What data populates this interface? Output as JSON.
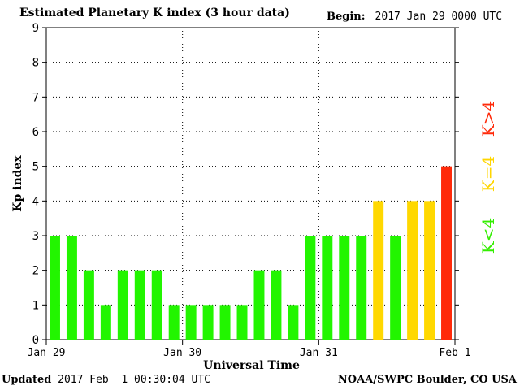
{
  "header": {
    "title": "Estimated Planetary K index (3 hour data)",
    "begin_label": "Begin:",
    "begin_value": "2017 Jan 29 0000 UTC"
  },
  "footer": {
    "updated_label": "Updated",
    "updated_value": "2017 Feb  1 00:30:04 UTC",
    "credit": "NOAA/SWPC Boulder, CO USA"
  },
  "legend": [
    {
      "label": "K<4",
      "color": "#33ee00"
    },
    {
      "label": "K=4",
      "color": "#ffd600"
    },
    {
      "label": "K>4",
      "color": "#ff2a0a"
    }
  ],
  "colors": {
    "low": "#22f500",
    "mid": "#ffd800",
    "high": "#ff2a0a"
  },
  "chart_data": {
    "type": "bar",
    "title": "Estimated Planetary K index (3 hour data)",
    "xlabel": "Universal Time",
    "ylabel": "Kp index",
    "ylim": [
      0,
      9
    ],
    "yticks": [
      0,
      1,
      2,
      3,
      4,
      5,
      6,
      7,
      8,
      9
    ],
    "xtick_labels": [
      "Jan 29",
      "Jan 30",
      "Jan 31",
      "Feb 1"
    ],
    "grid": true,
    "bars_per_day": 8,
    "values": [
      3,
      3,
      2,
      1,
      2,
      2,
      2,
      1,
      1,
      1,
      1,
      1,
      2,
      2,
      1,
      3,
      3,
      3,
      3,
      4,
      3,
      4,
      4,
      5
    ]
  }
}
